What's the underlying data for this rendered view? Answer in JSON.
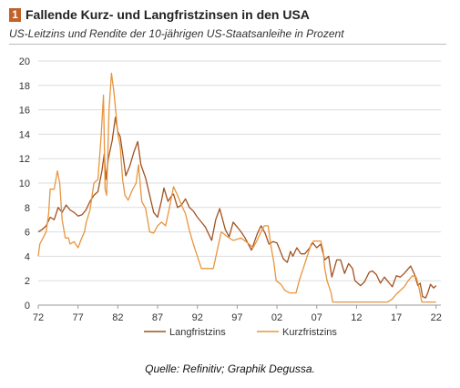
{
  "header": {
    "badge": "1",
    "title": "Fallende Kurz- und Langfristzinsen in den USA",
    "subtitle": "US-Leitzins und Rendite der 10-jährigen US-Staatsanleihe in Prozent"
  },
  "source": "Quelle: Refinitiv; Graphik Degussa.",
  "colors": {
    "long": "#a0521f",
    "short": "#e8953f",
    "accent": "#c0622a",
    "grid": "#dddddd"
  },
  "chart_data": {
    "type": "line",
    "title": "Fallende Kurz- und Langfristzinsen in den USA",
    "subtitle": "US-Leitzins und Rendite der 10-jährigen US-Staatsanleihe in Prozent",
    "xlim": [
      1972,
      2022.6
    ],
    "ylim": [
      0,
      20
    ],
    "yticks": [
      0,
      2,
      4,
      6,
      8,
      10,
      12,
      14,
      16,
      18,
      20
    ],
    "xticks": [
      {
        "x": 1972,
        "label": "72"
      },
      {
        "x": 1977,
        "label": "77"
      },
      {
        "x": 1982,
        "label": "82"
      },
      {
        "x": 1987,
        "label": "87"
      },
      {
        "x": 1992,
        "label": "92"
      },
      {
        "x": 1997,
        "label": "97"
      },
      {
        "x": 2002,
        "label": "02"
      },
      {
        "x": 2007,
        "label": "07"
      },
      {
        "x": 2012,
        "label": "12"
      },
      {
        "x": 2017,
        "label": "17"
      },
      {
        "x": 2022,
        "label": "22"
      }
    ],
    "grid": "horizontal",
    "legend": "bottom-center",
    "series": [
      {
        "name": "Langfristzins",
        "color": "#a0521f",
        "points": [
          [
            1972.0,
            6.0
          ],
          [
            1972.5,
            6.2
          ],
          [
            1973.0,
            6.5
          ],
          [
            1973.5,
            7.2
          ],
          [
            1974.0,
            7.0
          ],
          [
            1974.5,
            8.0
          ],
          [
            1975.0,
            7.6
          ],
          [
            1975.5,
            8.2
          ],
          [
            1976.0,
            7.8
          ],
          [
            1976.5,
            7.6
          ],
          [
            1977.0,
            7.3
          ],
          [
            1977.5,
            7.4
          ],
          [
            1978.0,
            7.8
          ],
          [
            1978.5,
            8.5
          ],
          [
            1979.0,
            9.0
          ],
          [
            1979.5,
            9.3
          ],
          [
            1980.0,
            11.0
          ],
          [
            1980.3,
            12.4
          ],
          [
            1980.5,
            10.3
          ],
          [
            1980.8,
            12.0
          ],
          [
            1981.0,
            12.6
          ],
          [
            1981.3,
            13.5
          ],
          [
            1981.7,
            15.4
          ],
          [
            1982.0,
            14.2
          ],
          [
            1982.3,
            13.8
          ],
          [
            1982.7,
            12.0
          ],
          [
            1983.0,
            10.6
          ],
          [
            1983.5,
            11.4
          ],
          [
            1984.0,
            12.5
          ],
          [
            1984.5,
            13.4
          ],
          [
            1984.9,
            11.5
          ],
          [
            1985.5,
            10.4
          ],
          [
            1986.0,
            9.0
          ],
          [
            1986.5,
            7.6
          ],
          [
            1987.0,
            7.2
          ],
          [
            1987.5,
            8.6
          ],
          [
            1987.8,
            9.6
          ],
          [
            1988.3,
            8.5
          ],
          [
            1988.8,
            9.0
          ],
          [
            1989.0,
            9.1
          ],
          [
            1989.5,
            8.0
          ],
          [
            1990.0,
            8.2
          ],
          [
            1990.5,
            8.7
          ],
          [
            1991.0,
            8.0
          ],
          [
            1991.5,
            7.7
          ],
          [
            1992.0,
            7.2
          ],
          [
            1992.5,
            6.8
          ],
          [
            1993.0,
            6.4
          ],
          [
            1993.8,
            5.3
          ],
          [
            1994.3,
            7.0
          ],
          [
            1994.8,
            7.9
          ],
          [
            1995.5,
            6.2
          ],
          [
            1996.0,
            5.6
          ],
          [
            1996.5,
            6.8
          ],
          [
            1997.0,
            6.4
          ],
          [
            1997.5,
            6.0
          ],
          [
            1998.0,
            5.5
          ],
          [
            1998.8,
            4.5
          ],
          [
            1999.5,
            5.8
          ],
          [
            2000.0,
            6.5
          ],
          [
            2000.5,
            5.9
          ],
          [
            2001.0,
            5.0
          ],
          [
            2001.5,
            5.2
          ],
          [
            2002.0,
            5.1
          ],
          [
            2002.5,
            4.3
          ],
          [
            2002.8,
            3.8
          ],
          [
            2003.3,
            3.5
          ],
          [
            2003.7,
            4.4
          ],
          [
            2004.0,
            4.0
          ],
          [
            2004.5,
            4.7
          ],
          [
            2005.0,
            4.2
          ],
          [
            2005.5,
            4.2
          ],
          [
            2006.0,
            4.6
          ],
          [
            2006.5,
            5.1
          ],
          [
            2007.0,
            4.7
          ],
          [
            2007.5,
            5.0
          ],
          [
            2008.0,
            3.7
          ],
          [
            2008.5,
            4.0
          ],
          [
            2008.9,
            2.3
          ],
          [
            2009.5,
            3.7
          ],
          [
            2010.0,
            3.7
          ],
          [
            2010.5,
            2.6
          ],
          [
            2011.0,
            3.4
          ],
          [
            2011.5,
            3.0
          ],
          [
            2011.8,
            2.0
          ],
          [
            2012.5,
            1.6
          ],
          [
            2013.0,
            1.9
          ],
          [
            2013.6,
            2.7
          ],
          [
            2014.0,
            2.8
          ],
          [
            2014.5,
            2.5
          ],
          [
            2015.0,
            1.8
          ],
          [
            2015.5,
            2.3
          ],
          [
            2016.0,
            1.9
          ],
          [
            2016.5,
            1.5
          ],
          [
            2017.0,
            2.4
          ],
          [
            2017.5,
            2.3
          ],
          [
            2018.0,
            2.6
          ],
          [
            2018.8,
            3.2
          ],
          [
            2019.3,
            2.5
          ],
          [
            2019.7,
            1.6
          ],
          [
            2020.0,
            1.8
          ],
          [
            2020.3,
            0.7
          ],
          [
            2020.7,
            0.6
          ],
          [
            2021.0,
            1.1
          ],
          [
            2021.3,
            1.7
          ],
          [
            2021.7,
            1.4
          ],
          [
            2022.0,
            1.6
          ]
        ]
      },
      {
        "name": "Kurzfristzins",
        "color": "#e8953f",
        "points": [
          [
            1972.0,
            4.0
          ],
          [
            1972.2,
            5.0
          ],
          [
            1972.6,
            5.5
          ],
          [
            1973.0,
            6.0
          ],
          [
            1973.3,
            7.5
          ],
          [
            1973.5,
            9.5
          ],
          [
            1974.0,
            9.5
          ],
          [
            1974.4,
            11.0
          ],
          [
            1974.7,
            10.0
          ],
          [
            1975.0,
            7.0
          ],
          [
            1975.4,
            5.5
          ],
          [
            1975.8,
            5.5
          ],
          [
            1976.0,
            5.0
          ],
          [
            1976.5,
            5.2
          ],
          [
            1977.0,
            4.7
          ],
          [
            1977.4,
            5.4
          ],
          [
            1977.8,
            6.0
          ],
          [
            1978.0,
            6.7
          ],
          [
            1978.5,
            7.8
          ],
          [
            1979.0,
            10.0
          ],
          [
            1979.5,
            10.3
          ],
          [
            1979.9,
            13.8
          ],
          [
            1980.2,
            17.2
          ],
          [
            1980.4,
            9.5
          ],
          [
            1980.6,
            9.0
          ],
          [
            1980.9,
            16.0
          ],
          [
            1981.2,
            19.0
          ],
          [
            1981.5,
            17.5
          ],
          [
            1981.8,
            15.5
          ],
          [
            1982.0,
            14.0
          ],
          [
            1982.3,
            13.0
          ],
          [
            1982.6,
            10.3
          ],
          [
            1982.9,
            9.0
          ],
          [
            1983.3,
            8.6
          ],
          [
            1983.8,
            9.4
          ],
          [
            1984.3,
            10.0
          ],
          [
            1984.6,
            11.5
          ],
          [
            1985.0,
            8.5
          ],
          [
            1985.5,
            7.9
          ],
          [
            1986.0,
            6.0
          ],
          [
            1986.5,
            5.9
          ],
          [
            1987.0,
            6.5
          ],
          [
            1987.5,
            6.8
          ],
          [
            1988.0,
            6.5
          ],
          [
            1988.5,
            8.0
          ],
          [
            1989.0,
            9.7
          ],
          [
            1989.5,
            9.0
          ],
          [
            1990.0,
            8.2
          ],
          [
            1990.5,
            7.5
          ],
          [
            1991.0,
            6.1
          ],
          [
            1991.5,
            5.0
          ],
          [
            1992.0,
            4.0
          ],
          [
            1992.5,
            3.0
          ],
          [
            1993.0,
            3.0
          ],
          [
            1994.0,
            3.0
          ],
          [
            1994.5,
            4.5
          ],
          [
            1995.0,
            6.0
          ],
          [
            1995.8,
            5.6
          ],
          [
            1996.5,
            5.3
          ],
          [
            1997.5,
            5.5
          ],
          [
            1998.5,
            5.0
          ],
          [
            1999.0,
            4.7
          ],
          [
            1999.5,
            5.3
          ],
          [
            2000.0,
            6.0
          ],
          [
            2000.4,
            6.5
          ],
          [
            2000.9,
            6.5
          ],
          [
            2001.2,
            5.0
          ],
          [
            2001.6,
            3.5
          ],
          [
            2001.9,
            2.0
          ],
          [
            2002.5,
            1.7
          ],
          [
            2003.0,
            1.2
          ],
          [
            2003.6,
            1.0
          ],
          [
            2004.4,
            1.0
          ],
          [
            2004.8,
            2.0
          ],
          [
            2005.3,
            3.0
          ],
          [
            2005.8,
            4.0
          ],
          [
            2006.3,
            5.0
          ],
          [
            2006.6,
            5.25
          ],
          [
            2007.5,
            5.25
          ],
          [
            2007.8,
            4.5
          ],
          [
            2008.0,
            3.0
          ],
          [
            2008.3,
            2.0
          ],
          [
            2008.8,
            1.0
          ],
          [
            2009.0,
            0.25
          ],
          [
            2012.0,
            0.25
          ],
          [
            2015.9,
            0.25
          ],
          [
            2016.5,
            0.5
          ],
          [
            2017.0,
            0.9
          ],
          [
            2017.5,
            1.2
          ],
          [
            2018.0,
            1.5
          ],
          [
            2018.5,
            2.0
          ],
          [
            2019.0,
            2.4
          ],
          [
            2019.5,
            2.3
          ],
          [
            2019.8,
            1.6
          ],
          [
            2020.2,
            0.25
          ],
          [
            2022.0,
            0.25
          ]
        ]
      }
    ]
  }
}
